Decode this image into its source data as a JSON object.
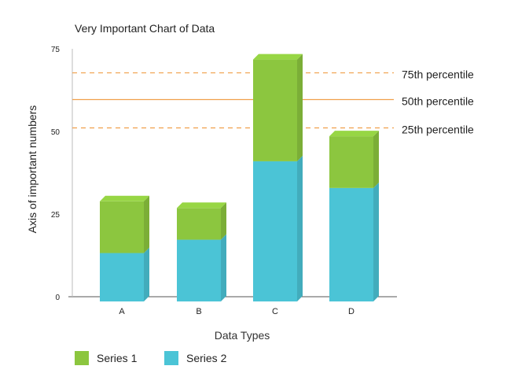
{
  "chart_data": {
    "type": "bar",
    "stacked": true,
    "style": "3d-extruded",
    "title": "Very Important Chart of Data",
    "xlabel": "Data Types",
    "ylabel": "Axis of important numbers",
    "categories": [
      "A",
      "B",
      "C",
      "D"
    ],
    "ylim": [
      0,
      75
    ],
    "yticks": [
      0,
      25,
      50,
      75
    ],
    "series": [
      {
        "name": "Series 1",
        "color": "#8cc63f",
        "values": [
          15.5,
          9.5,
          30.5,
          15.5
        ]
      },
      {
        "name": "Series 2",
        "color": "#4bc4d6",
        "values": [
          14.5,
          18.5,
          42,
          34
        ]
      }
    ],
    "reference_lines": [
      {
        "label": "75th percentile",
        "value": 68.5,
        "style": "dashed",
        "color": "#f0a04b"
      },
      {
        "label": "50th percentile",
        "value": 60.5,
        "style": "solid",
        "color": "#f0a04b"
      },
      {
        "label": "25th percentile",
        "value": 52,
        "style": "dashed",
        "color": "#f0a04b"
      }
    ],
    "legend": {
      "position": "bottom-left"
    },
    "grid": false
  }
}
